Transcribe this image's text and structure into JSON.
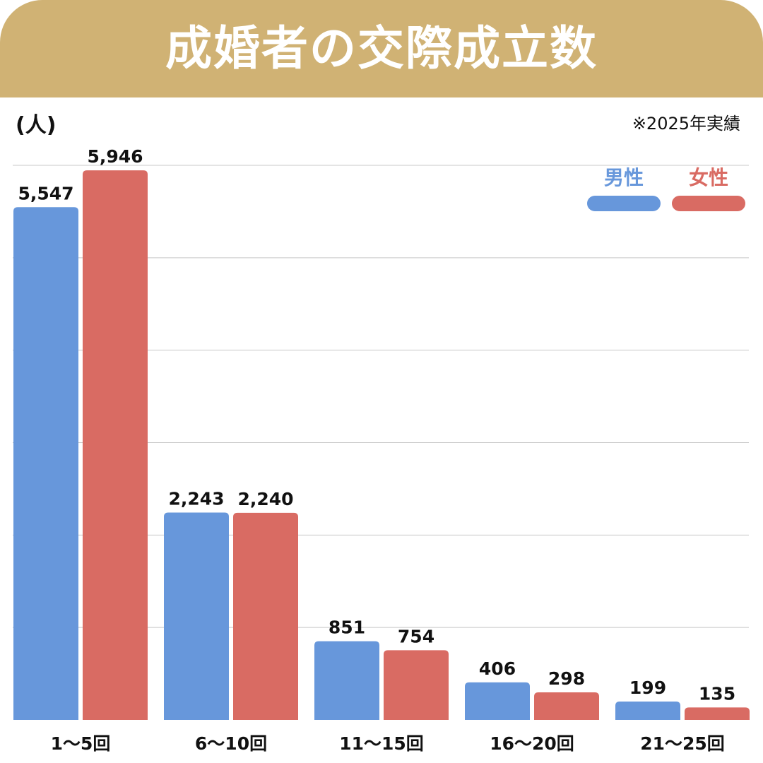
{
  "title": "成婚者の交際成立数",
  "unit_label": "(人)",
  "note": "※2025年実績",
  "colors": {
    "header": "#d0b274",
    "male": "#6797db",
    "female": "#d96b63",
    "grid": "#c8c8c8"
  },
  "legend": {
    "male": "男性",
    "female": "女性"
  },
  "chart_data": {
    "type": "bar",
    "categories": [
      "1〜5回",
      "6〜10回",
      "11〜15回",
      "16〜20回",
      "21〜25回"
    ],
    "series": [
      {
        "name": "男性",
        "values": [
          5547,
          2243,
          851,
          406,
          199
        ],
        "labels": [
          "5,547",
          "2,243",
          "851",
          "406",
          "199"
        ]
      },
      {
        "name": "女性",
        "values": [
          5946,
          2240,
          754,
          298,
          135
        ],
        "labels": [
          "5,946",
          "2,240",
          "754",
          "298",
          "135"
        ]
      }
    ],
    "ylabel": "(人)",
    "ylim": [
      0,
      6000
    ],
    "grid": true,
    "legend_position": "top-right"
  }
}
